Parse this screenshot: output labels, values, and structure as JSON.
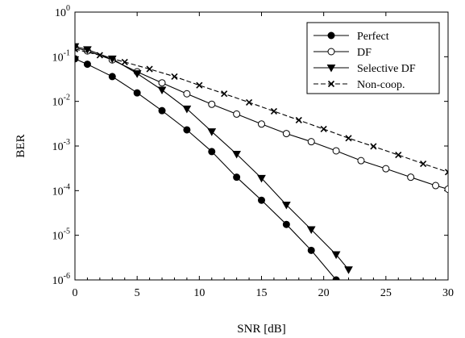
{
  "chart_data": {
    "type": "line",
    "xlabel": "SNR [dB]",
    "ylabel": "BER",
    "xlim": [
      0,
      30
    ],
    "ylim_exponents": [
      -6,
      0
    ],
    "y_scale": "log",
    "x_ticks": [
      "0",
      "5",
      "10",
      "15",
      "20",
      "25",
      "30"
    ],
    "y_ticks": [
      {
        "base": "10",
        "exp": "0"
      },
      {
        "base": "10",
        "exp": "-1"
      },
      {
        "base": "10",
        "exp": "-2"
      },
      {
        "base": "10",
        "exp": "-3"
      },
      {
        "base": "10",
        "exp": "-4"
      },
      {
        "base": "10",
        "exp": "-5"
      },
      {
        "base": "10",
        "exp": "-6"
      }
    ],
    "grid": false,
    "legend_position": "top-right",
    "series": [
      {
        "name": "Perfect",
        "marker": "filled-circle",
        "line": "solid",
        "x": [
          0,
          1,
          3,
          5,
          7,
          9,
          11,
          13,
          15,
          17,
          19,
          21,
          23
        ],
        "y": [
          0.09,
          0.068,
          0.036,
          0.0155,
          0.0062,
          0.0023,
          0.00075,
          0.0002,
          6.1e-05,
          1.75e-05,
          4.6e-06,
          1e-06,
          2.2e-07
        ]
      },
      {
        "name": "DF",
        "marker": "open-circle",
        "line": "solid",
        "x": [
          0,
          1,
          3,
          5,
          7,
          9,
          11,
          13,
          15,
          17,
          19,
          21,
          23,
          25,
          27,
          29,
          30
        ],
        "y": [
          0.16,
          0.135,
          0.085,
          0.046,
          0.026,
          0.0148,
          0.0086,
          0.0052,
          0.0031,
          0.0019,
          0.00125,
          0.00078,
          0.00047,
          0.00031,
          0.0002,
          0.00013,
          0.000108
        ]
      },
      {
        "name": "Selective DF",
        "marker": "filled-down-triangle",
        "line": "solid",
        "x": [
          0,
          1,
          3,
          5,
          7,
          9,
          11,
          13,
          15,
          17,
          19,
          21,
          22
        ],
        "y": [
          0.17,
          0.145,
          0.09,
          0.042,
          0.018,
          0.0068,
          0.0021,
          0.00066,
          0.00019,
          4.8e-05,
          1.35e-05,
          3.7e-06,
          1.7e-06
        ]
      },
      {
        "name": "Non-coop.",
        "marker": "cross",
        "line": "dashed",
        "x": [
          0,
          2,
          4,
          6,
          8,
          10,
          12,
          14,
          16,
          18,
          20,
          22,
          24,
          26,
          28,
          30
        ],
        "y": [
          0.148,
          0.108,
          0.076,
          0.053,
          0.036,
          0.023,
          0.0148,
          0.0095,
          0.006,
          0.0038,
          0.0024,
          0.0015,
          0.00098,
          0.00063,
          0.0004,
          0.00026
        ]
      }
    ]
  }
}
